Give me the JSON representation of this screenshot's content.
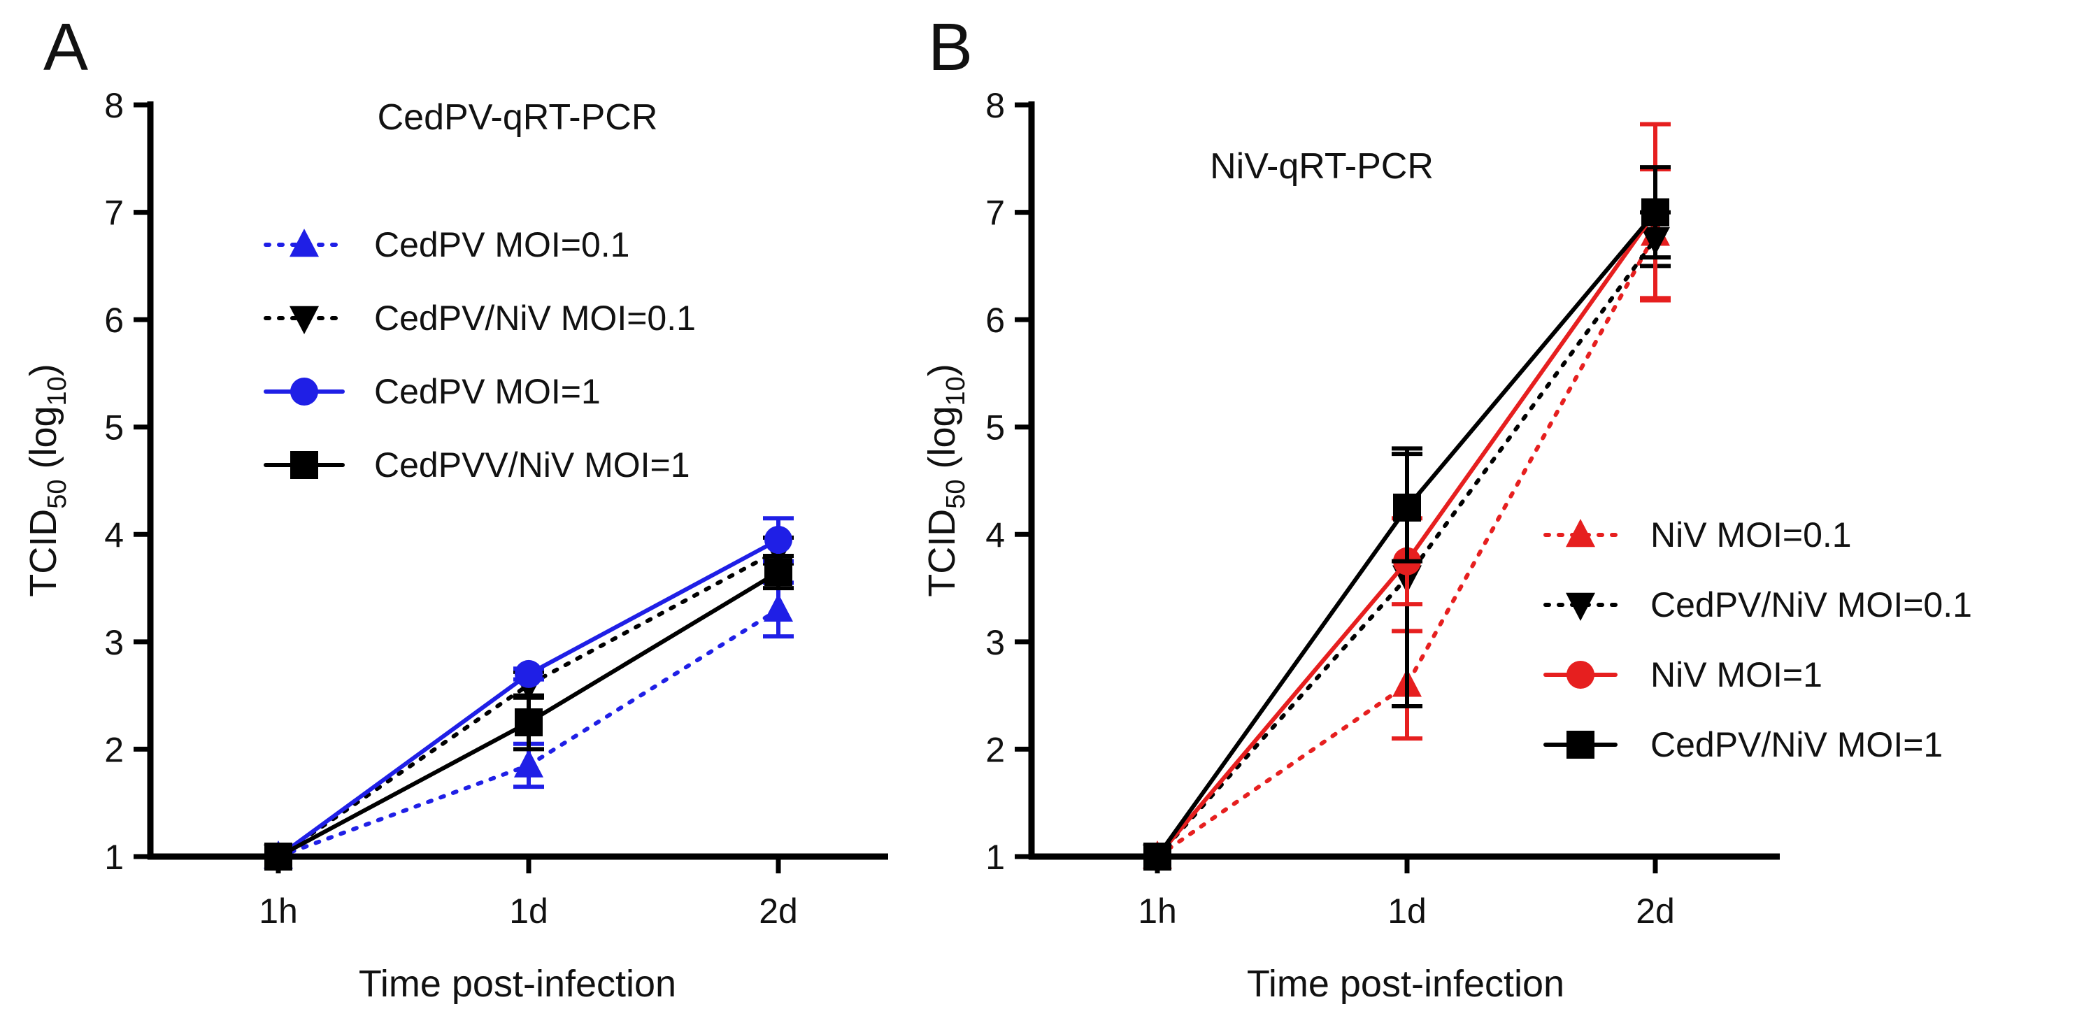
{
  "chart_data": [
    {
      "type": "line",
      "panel": "A",
      "title": "CedPV-qRT-PCR",
      "xlabel": "Time post-infection",
      "ylabel": "TCID",
      "ylabel_sub": "50",
      "ylabel_paren": "(log",
      "ylabel_base_sub": "10",
      "ylabel_close": ")",
      "categories": [
        "1h",
        "1d",
        "2d"
      ],
      "ylim": [
        1,
        8
      ],
      "yticks": [
        "1",
        "2",
        "3",
        "4",
        "5",
        "6",
        "7",
        "8"
      ],
      "legend_position": "upper-center",
      "series": [
        {
          "name": "CedPV MOI=0.1",
          "values": [
            1.0,
            1.85,
            3.3
          ],
          "errors": [
            0.02,
            0.2,
            0.25
          ],
          "color": "#1f1fe6",
          "dash": "dotted",
          "marker": "triangle-up"
        },
        {
          "name": "CedPV/NiV MOI=0.1",
          "values": [
            1.0,
            2.6,
            3.85
          ],
          "errors": [
            0.02,
            0.12,
            0.12
          ],
          "color": "#000000",
          "dash": "dotted",
          "marker": "triangle-down"
        },
        {
          "name": "CedPV MOI=1",
          "values": [
            1.0,
            2.7,
            3.95
          ],
          "errors": [
            0.02,
            0.05,
            0.2
          ],
          "color": "#1f1fe6",
          "dash": "solid",
          "marker": "circle"
        },
        {
          "name": "CedPVV/NiV MOI=1",
          "values": [
            1.0,
            2.25,
            3.65
          ],
          "errors": [
            0.02,
            0.25,
            0.15
          ],
          "color": "#000000",
          "dash": "solid",
          "marker": "square"
        }
      ]
    },
    {
      "type": "line",
      "panel": "B",
      "title": "NiV-qRT-PCR",
      "xlabel": "Time post-infection",
      "ylabel": "TCID",
      "ylabel_sub": "50",
      "ylabel_paren": "(log",
      "ylabel_base_sub": "10",
      "ylabel_close": ")",
      "categories": [
        "1h",
        "1d",
        "2d"
      ],
      "ylim": [
        1,
        8
      ],
      "yticks": [
        "1",
        "2",
        "3",
        "4",
        "5",
        "6",
        "7",
        "8"
      ],
      "legend_position": "lower-right",
      "series": [
        {
          "name": "NiV MOI=0.1",
          "values": [
            1.0,
            2.6,
            6.8
          ],
          "errors": [
            0.02,
            0.5,
            0.6
          ],
          "color": "#e61f1f",
          "dash": "dotted",
          "marker": "triangle-up"
        },
        {
          "name": "CedPV/NiV MOI=0.1",
          "values": [
            1.0,
            3.6,
            6.75
          ],
          "errors": [
            0.02,
            1.2,
            0.25
          ],
          "color": "#000000",
          "dash": "dotted",
          "marker": "triangle-down"
        },
        {
          "name": "NiV MOI=1",
          "values": [
            1.0,
            3.75,
            7.0
          ],
          "errors": [
            0.02,
            0.4,
            0.82
          ],
          "color": "#e61f1f",
          "dash": "solid",
          "marker": "circle"
        },
        {
          "name": "CedPV/NiV MOI=1",
          "values": [
            1.0,
            4.25,
            7.0
          ],
          "errors": [
            0.02,
            0.5,
            0.42
          ],
          "color": "#000000",
          "dash": "solid",
          "marker": "square"
        }
      ]
    }
  ]
}
